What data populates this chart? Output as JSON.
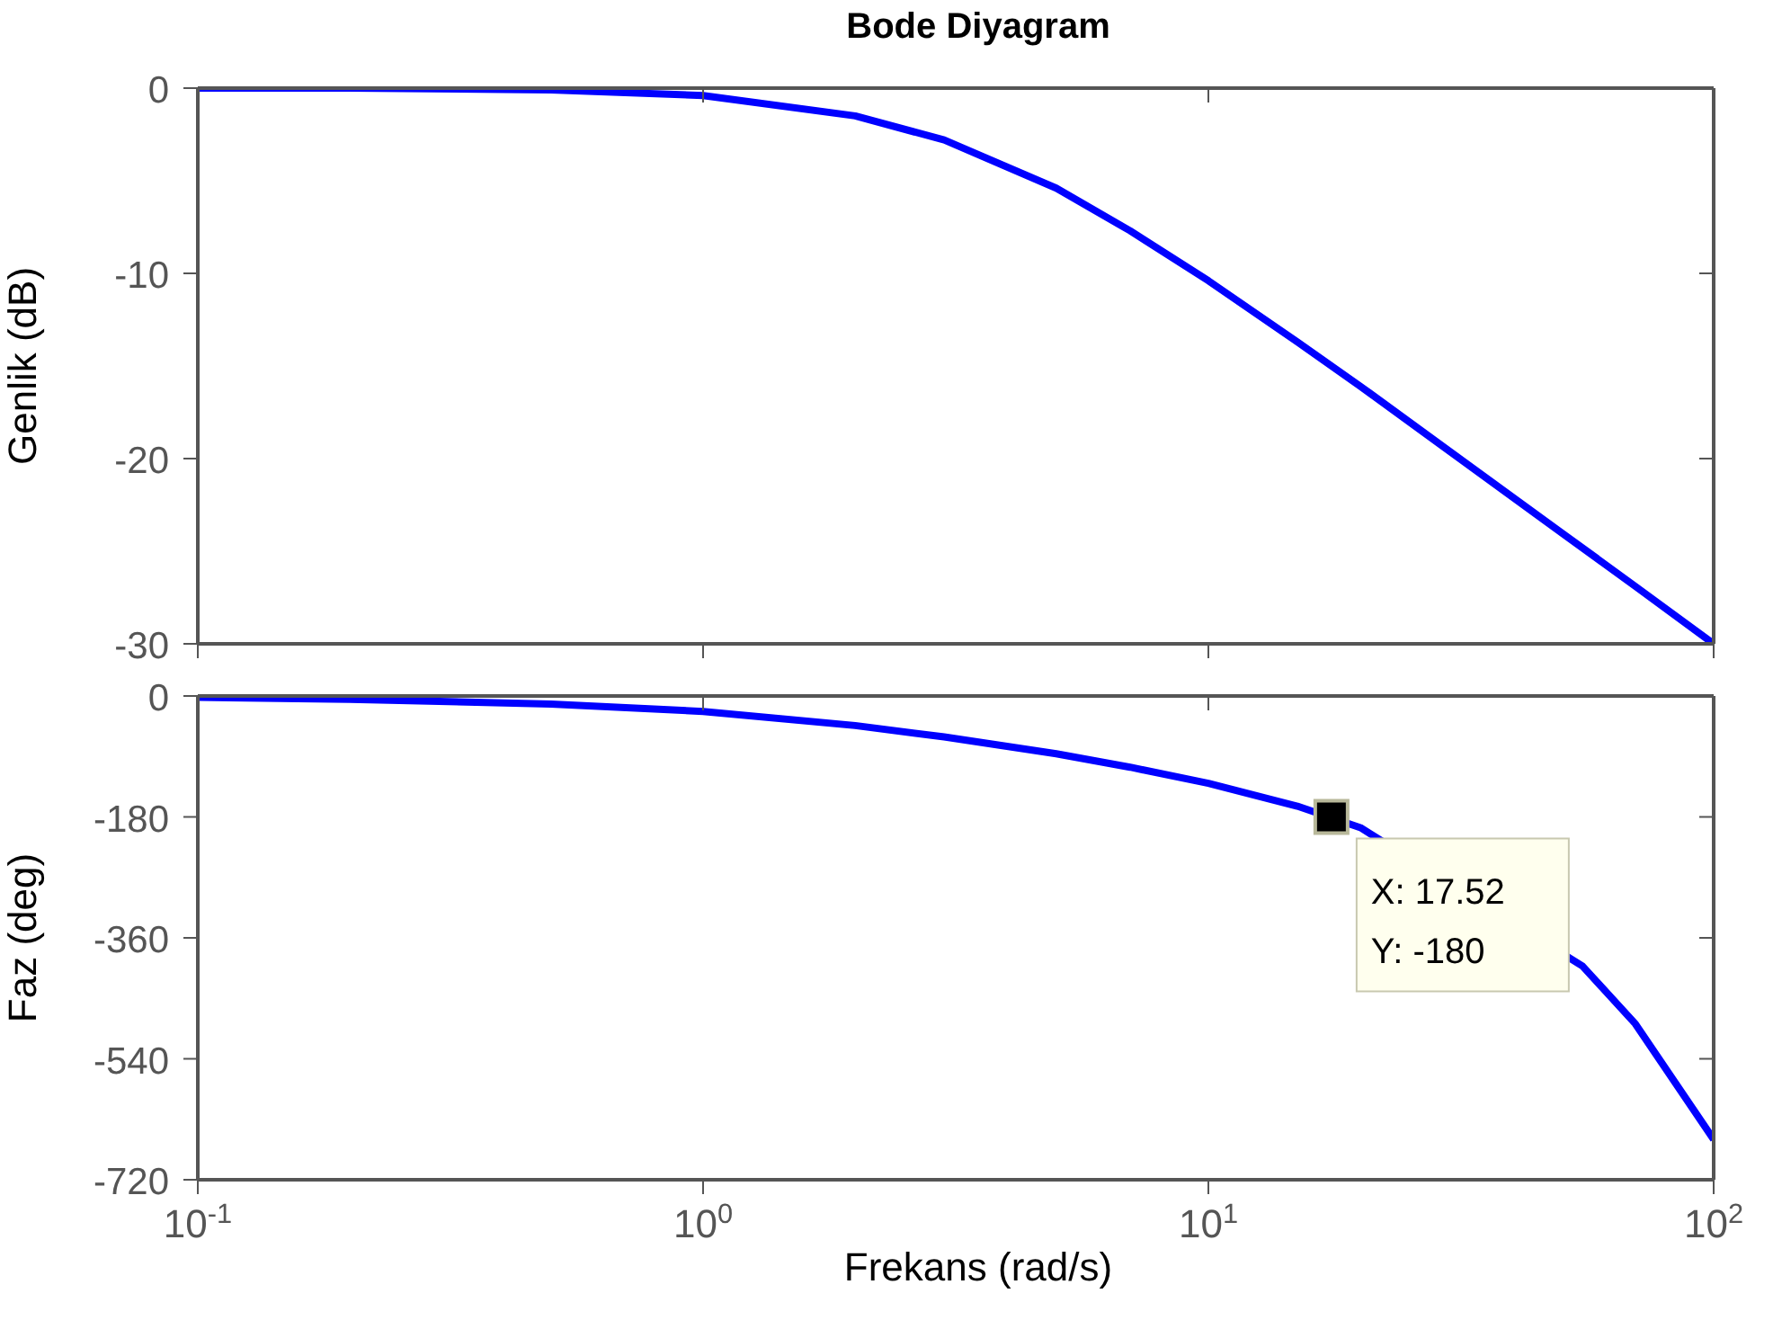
{
  "chart_data": [
    {
      "type": "line",
      "title": "Bode Diyagram",
      "ylabel": "Genlik (dB)",
      "x": [
        0.1,
        0.2,
        0.5,
        1,
        2,
        3,
        5,
        7,
        10,
        15,
        20,
        30,
        50,
        70,
        100
      ],
      "series": [
        {
          "color": "#0000ff",
          "values": [
            0,
            0,
            -0.1,
            -0.4,
            -1.5,
            -2.8,
            -5.4,
            -7.7,
            -10.4,
            -13.7,
            -16.1,
            -19.6,
            -24,
            -26.9,
            -30
          ]
        }
      ],
      "log": "x",
      "xlim": [
        0.1,
        100
      ],
      "xticks": [
        0.1,
        1,
        10,
        100
      ],
      "ylim": [
        -30,
        0
      ],
      "yticks": [
        -30,
        -20,
        -10,
        0
      ],
      "tick_labels": "y",
      "grid": false,
      "legend": false,
      "marker": "none",
      "line_style": "solid"
    },
    {
      "type": "line",
      "xlabel": "Frekans  (rad/s)",
      "ylabel": "Faz (deg)",
      "x": [
        0.1,
        0.2,
        0.5,
        1,
        2,
        3,
        5,
        7,
        10,
        15,
        20,
        30,
        55,
        70,
        100
      ],
      "series": [
        {
          "color": "#0000ff",
          "values": [
            -2,
            -5,
            -12,
            -23,
            -44,
            -61,
            -86,
            -106,
            -130,
            -164,
            -196,
            null,
            -402,
            -488,
            -660
          ]
        }
      ],
      "log": "x",
      "xlim": [
        0.1,
        100
      ],
      "xticks": [
        {
          "value": 0.1,
          "label": "10$^{-1}$"
        },
        {
          "value": 1,
          "label": "10$^{0}$"
        },
        {
          "value": 10,
          "label": "10$^{1}$"
        },
        {
          "value": 100,
          "label": "10$^{2}$"
        }
      ],
      "ylim": [
        -720,
        0
      ],
      "yticks": [
        -720,
        -540,
        -360,
        -180,
        0
      ],
      "grid": false,
      "legend": false,
      "marker": "none",
      "line_style": "solid",
      "annotations": [
        {
          "text": "X: 17.52\nY: -180",
          "x": 17.52,
          "y": -180
        }
      ]
    }
  ]
}
